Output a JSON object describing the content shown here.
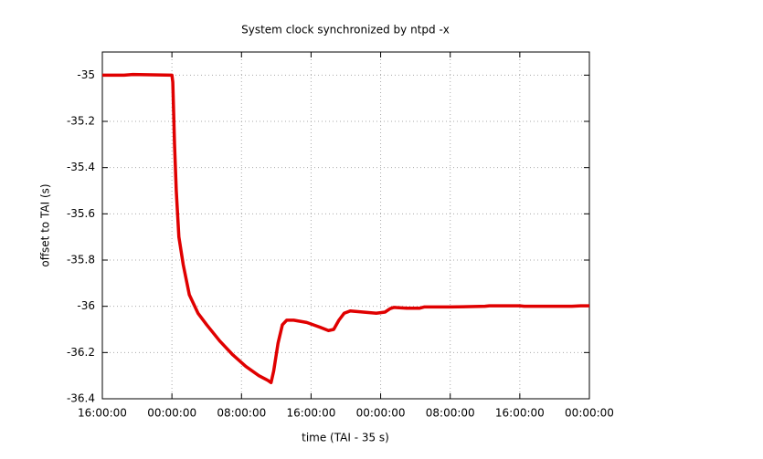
{
  "chart_data": {
    "type": "line",
    "title": "System clock synchronized by ntpd -x",
    "x_label": "time (TAI - 35 s)",
    "y_label": "offset to TAI (s)",
    "xlim": [
      0,
      56
    ],
    "ylim": [
      -36.4,
      -34.9
    ],
    "xticks": [
      {
        "value": 0,
        "label": "16:00:00"
      },
      {
        "value": 8,
        "label": "00:00:00"
      },
      {
        "value": 16,
        "label": "08:00:00"
      },
      {
        "value": 24,
        "label": "16:00:00"
      },
      {
        "value": 32,
        "label": "00:00:00"
      },
      {
        "value": 40,
        "label": "08:00:00"
      },
      {
        "value": 48,
        "label": "16:00:00"
      },
      {
        "value": 56,
        "label": "00:00:00"
      }
    ],
    "yticks": [
      -35,
      -35.2,
      -35.4,
      -35.6,
      -35.8,
      -36,
      -36.2,
      -36.4
    ],
    "grid": true,
    "series": [
      {
        "color": "#e00000",
        "x": [
          0,
          2.5,
          3.5,
          8,
          8.1,
          8.3,
          8.5,
          8.8,
          9.3,
          10,
          11,
          12,
          13.5,
          15,
          16.5,
          18,
          19,
          19.4,
          19.7,
          20.2,
          20.7,
          21.2,
          22,
          23.5,
          25,
          26,
          26.6,
          27.2,
          27.8,
          28.5,
          30,
          31.5,
          32.5,
          33.1,
          33.5,
          35,
          36.5,
          37,
          40,
          44,
          44.5,
          48,
          48.5,
          54,
          55,
          56
        ],
        "values": [
          -35,
          -35,
          -34.997,
          -35,
          -35.03,
          -35.3,
          -35.5,
          -35.7,
          -35.82,
          -35.95,
          -36.03,
          -36.08,
          -36.15,
          -36.21,
          -36.26,
          -36.3,
          -36.32,
          -36.33,
          -36.28,
          -36.16,
          -36.08,
          -36.06,
          -36.06,
          -36.07,
          -36.09,
          -36.105,
          -36.1,
          -36.06,
          -36.03,
          -36.02,
          -36.025,
          -36.03,
          -36.025,
          -36.01,
          -36.005,
          -36.008,
          -36.008,
          -36.003,
          -36.003,
          -36,
          -35.998,
          -35.998,
          -36,
          -36,
          -35.998,
          -35.998
        ]
      }
    ]
  }
}
